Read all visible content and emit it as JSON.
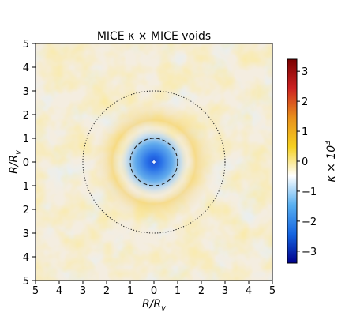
{
  "chart_data": {
    "type": "heatmap",
    "title": "MICE κ × MICE voids",
    "xlabel": "R/R",
    "xlabel_sub": "v",
    "ylabel": "R/R",
    "ylabel_sub": "v",
    "x_ticks": [
      "5",
      "4",
      "3",
      "2",
      "1",
      "0",
      "1",
      "2",
      "3",
      "4",
      "5"
    ],
    "y_ticks": [
      "5",
      "4",
      "3",
      "2",
      "1",
      "0",
      "1",
      "2",
      "3",
      "4",
      "5"
    ],
    "xlim": [
      -5,
      5
    ],
    "ylim": [
      -5,
      5
    ],
    "colorbar": {
      "label": "κ × 10",
      "label_exp": "3",
      "ticks": [
        "3",
        "2",
        "1",
        "0",
        "−1",
        "−2",
        "−3"
      ],
      "tick_values": [
        3,
        2,
        1,
        0,
        -1,
        -2,
        -3
      ],
      "range": [
        -3.4,
        3.4
      ],
      "colormap": "coolwarm-diverging",
      "colors": [
        "#00008b",
        "#1565e0",
        "#5ab0f0",
        "#ffffff",
        "#f5d020",
        "#e8901c",
        "#cc2222",
        "#7a0000"
      ]
    },
    "circles": [
      {
        "radius": 1,
        "style": "dashed"
      },
      {
        "radius": 3,
        "style": "dotted"
      }
    ],
    "center_marker": "white plus",
    "center_value": -3.4,
    "ring_value": 0.5
  }
}
